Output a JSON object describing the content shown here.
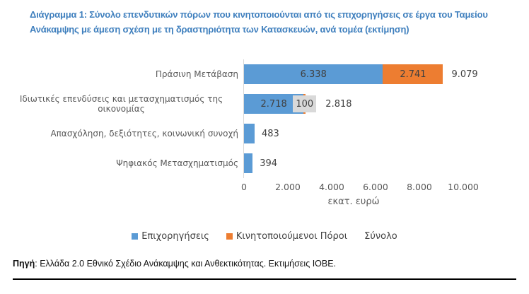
{
  "title": {
    "line1": "Διάγραμμα 1: Σύνολο επενδυτικών πόρων που κινητοποιούνται από τις επιχορηγήσεις σε έργα του Ταμείου",
    "line2": "Ανάκαμψης με άμεση σχέση με τη δραστηριότητα των Κατασκευών, ανά τομέα (εκτίμηση)",
    "color": "#4080BE"
  },
  "chart_data": {
    "type": "bar",
    "orientation": "horizontal",
    "x_max": 10000,
    "xlabel": "εκατ. ευρώ",
    "ticks": [
      {
        "value": 0,
        "label": "0"
      },
      {
        "value": 2000,
        "label": "2.000"
      },
      {
        "value": 4000,
        "label": "4.000"
      },
      {
        "value": 6000,
        "label": "6.000"
      },
      {
        "value": 8000,
        "label": "8.000"
      },
      {
        "value": 10000,
        "label": "10.000"
      }
    ],
    "colors": {
      "grants": "#5B9BD5",
      "mobilized": "#ED7D31",
      "label_box": "#D9D9D9",
      "axis_line": "#D9D9D9"
    },
    "rows": [
      {
        "label": "Πράσινη Μετάβαση",
        "grants": 6338,
        "mobilized": 2741,
        "total": 9079,
        "grants_label": "6.338",
        "grants_label_pos": "inside",
        "mobilized_label": "2.741",
        "mobilized_label_pos": "inside",
        "total_label": "9.079"
      },
      {
        "label": "Ιδιωτικές επενδύσεις και μετασχηματισμός της οικονομίας",
        "grants": 2718,
        "mobilized": 100,
        "total": 2818,
        "grants_label": "2.718",
        "grants_label_pos": "inside",
        "mobilized_label": "100",
        "mobilized_label_pos": "box",
        "total_label": "2.818"
      },
      {
        "label": "Απασχόληση, δεξιότητες, κοινωνική συνοχή",
        "grants": 483,
        "mobilized": 0,
        "total": 483,
        "grants_label": "483",
        "grants_label_pos": "outside",
        "mobilized_label": "",
        "mobilized_label_pos": "none",
        "total_label": ""
      },
      {
        "label": "Ψηφιακός Μετασχηματισμός",
        "grants": 394,
        "mobilized": 0,
        "total": 394,
        "grants_label": "394",
        "grants_label_pos": "outside",
        "mobilized_label": "",
        "mobilized_label_pos": "none",
        "total_label": ""
      }
    ],
    "legend": [
      {
        "label": "Επιχορηγήσεις",
        "color": "#5B9BD5"
      },
      {
        "label": "Κινητοποιούμενοι Πόροι",
        "color": "#ED7D31"
      },
      {
        "label": "Σύνολο",
        "color": ""
      }
    ]
  },
  "footer": {
    "source_label": "Πηγή",
    "source_text": ": Ελλάδα 2.0 Εθνικό Σχέδιο Ανάκαμψης και Ανθεκτικότητας. Εκτιμήσεις ΙΟΒΕ."
  }
}
